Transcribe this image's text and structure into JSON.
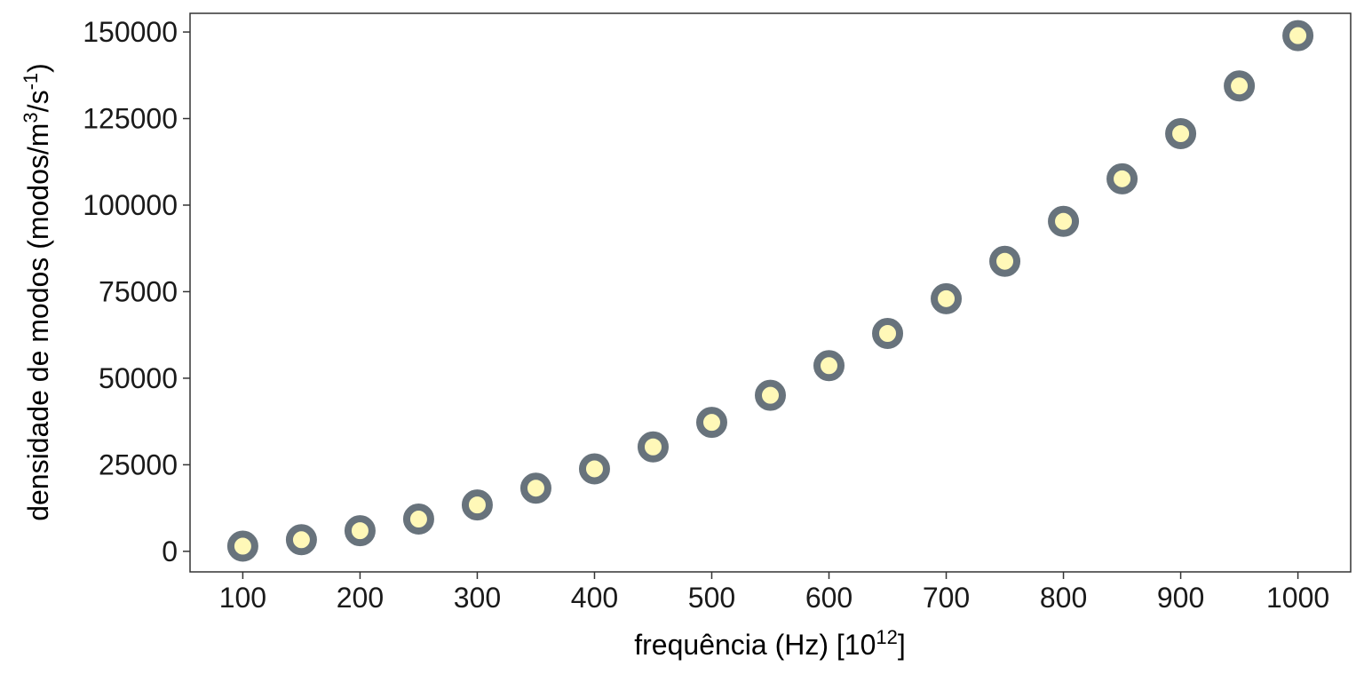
{
  "chart_data": {
    "type": "scatter",
    "title": "",
    "xlabel": {
      "base": "frequência (Hz) [10",
      "sup": "12",
      "end": "]"
    },
    "ylabel": {
      "base": "densidade de modos (modos/m",
      "sup1": "3",
      "mid": "/s",
      "sup2": "-1",
      "end": ")"
    },
    "xlim": [
      55,
      1045
    ],
    "ylim": [
      -5940,
      155400
    ],
    "x_ticks": [
      100,
      200,
      300,
      400,
      500,
      600,
      700,
      800,
      900,
      1000
    ],
    "y_ticks": [
      0,
      25000,
      50000,
      75000,
      100000,
      125000,
      150000
    ],
    "x_tick_labels": [
      "100",
      "200",
      "300",
      "400",
      "500",
      "600",
      "700",
      "800",
      "900",
      "1000"
    ],
    "y_tick_labels": [
      "0",
      "25000",
      "50000",
      "75000",
      "100000",
      "125000",
      "150000"
    ],
    "grid": false,
    "legend": "none",
    "point_fill": "#fff8b8",
    "point_stroke": "#68737c",
    "series": [
      {
        "x": [
          100,
          150,
          200,
          250,
          300,
          350,
          400,
          450,
          500,
          550,
          600,
          650,
          700,
          750,
          800,
          850,
          900,
          950,
          1000
        ],
        "y": [
          1490,
          3350,
          5960,
          9310,
          13400,
          18250,
          23830,
          30160,
          37240,
          45060,
          53620,
          62930,
          72980,
          83780,
          95320,
          107610,
          120640,
          134420,
          148940
        ]
      }
    ]
  }
}
